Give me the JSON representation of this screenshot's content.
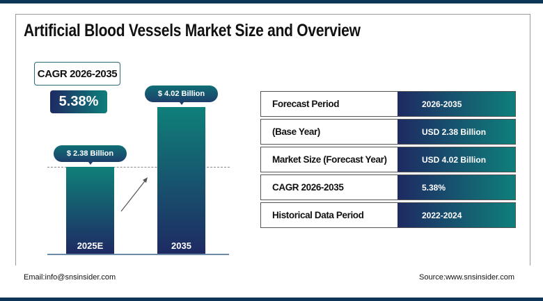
{
  "title": "Artificial Blood Vessels Market Size and Overview",
  "cagr": {
    "label": "CAGR 2026-2035",
    "value": "5.38%"
  },
  "colors": {
    "navy": "#1e2a63",
    "teal": "#0f7f7b",
    "topbar": "#0d3557"
  },
  "chart_data": {
    "type": "bar",
    "categories": [
      "2025E",
      "2035"
    ],
    "values": [
      2.38,
      4.02
    ],
    "data_labels": [
      "$ 2.38 Billion",
      "$ 4.02 Billion"
    ],
    "unit": "USD Billion"
  },
  "table": [
    {
      "label": "Forecast Period",
      "value": "2026-2035"
    },
    {
      "label": "(Base Year)",
      "value": "USD  2.38 Billion"
    },
    {
      "label": "Market Size (Forecast Year)",
      "value": "USD 4.02 Billion"
    },
    {
      "label": "CAGR 2026-2035",
      "value": "5.38%"
    },
    {
      "label": "Historical Data Period",
      "value": "2022-2024"
    }
  ],
  "footer": {
    "email": "Email:info@snsinsider.com",
    "source": "Source:www.snsinsider.com"
  }
}
